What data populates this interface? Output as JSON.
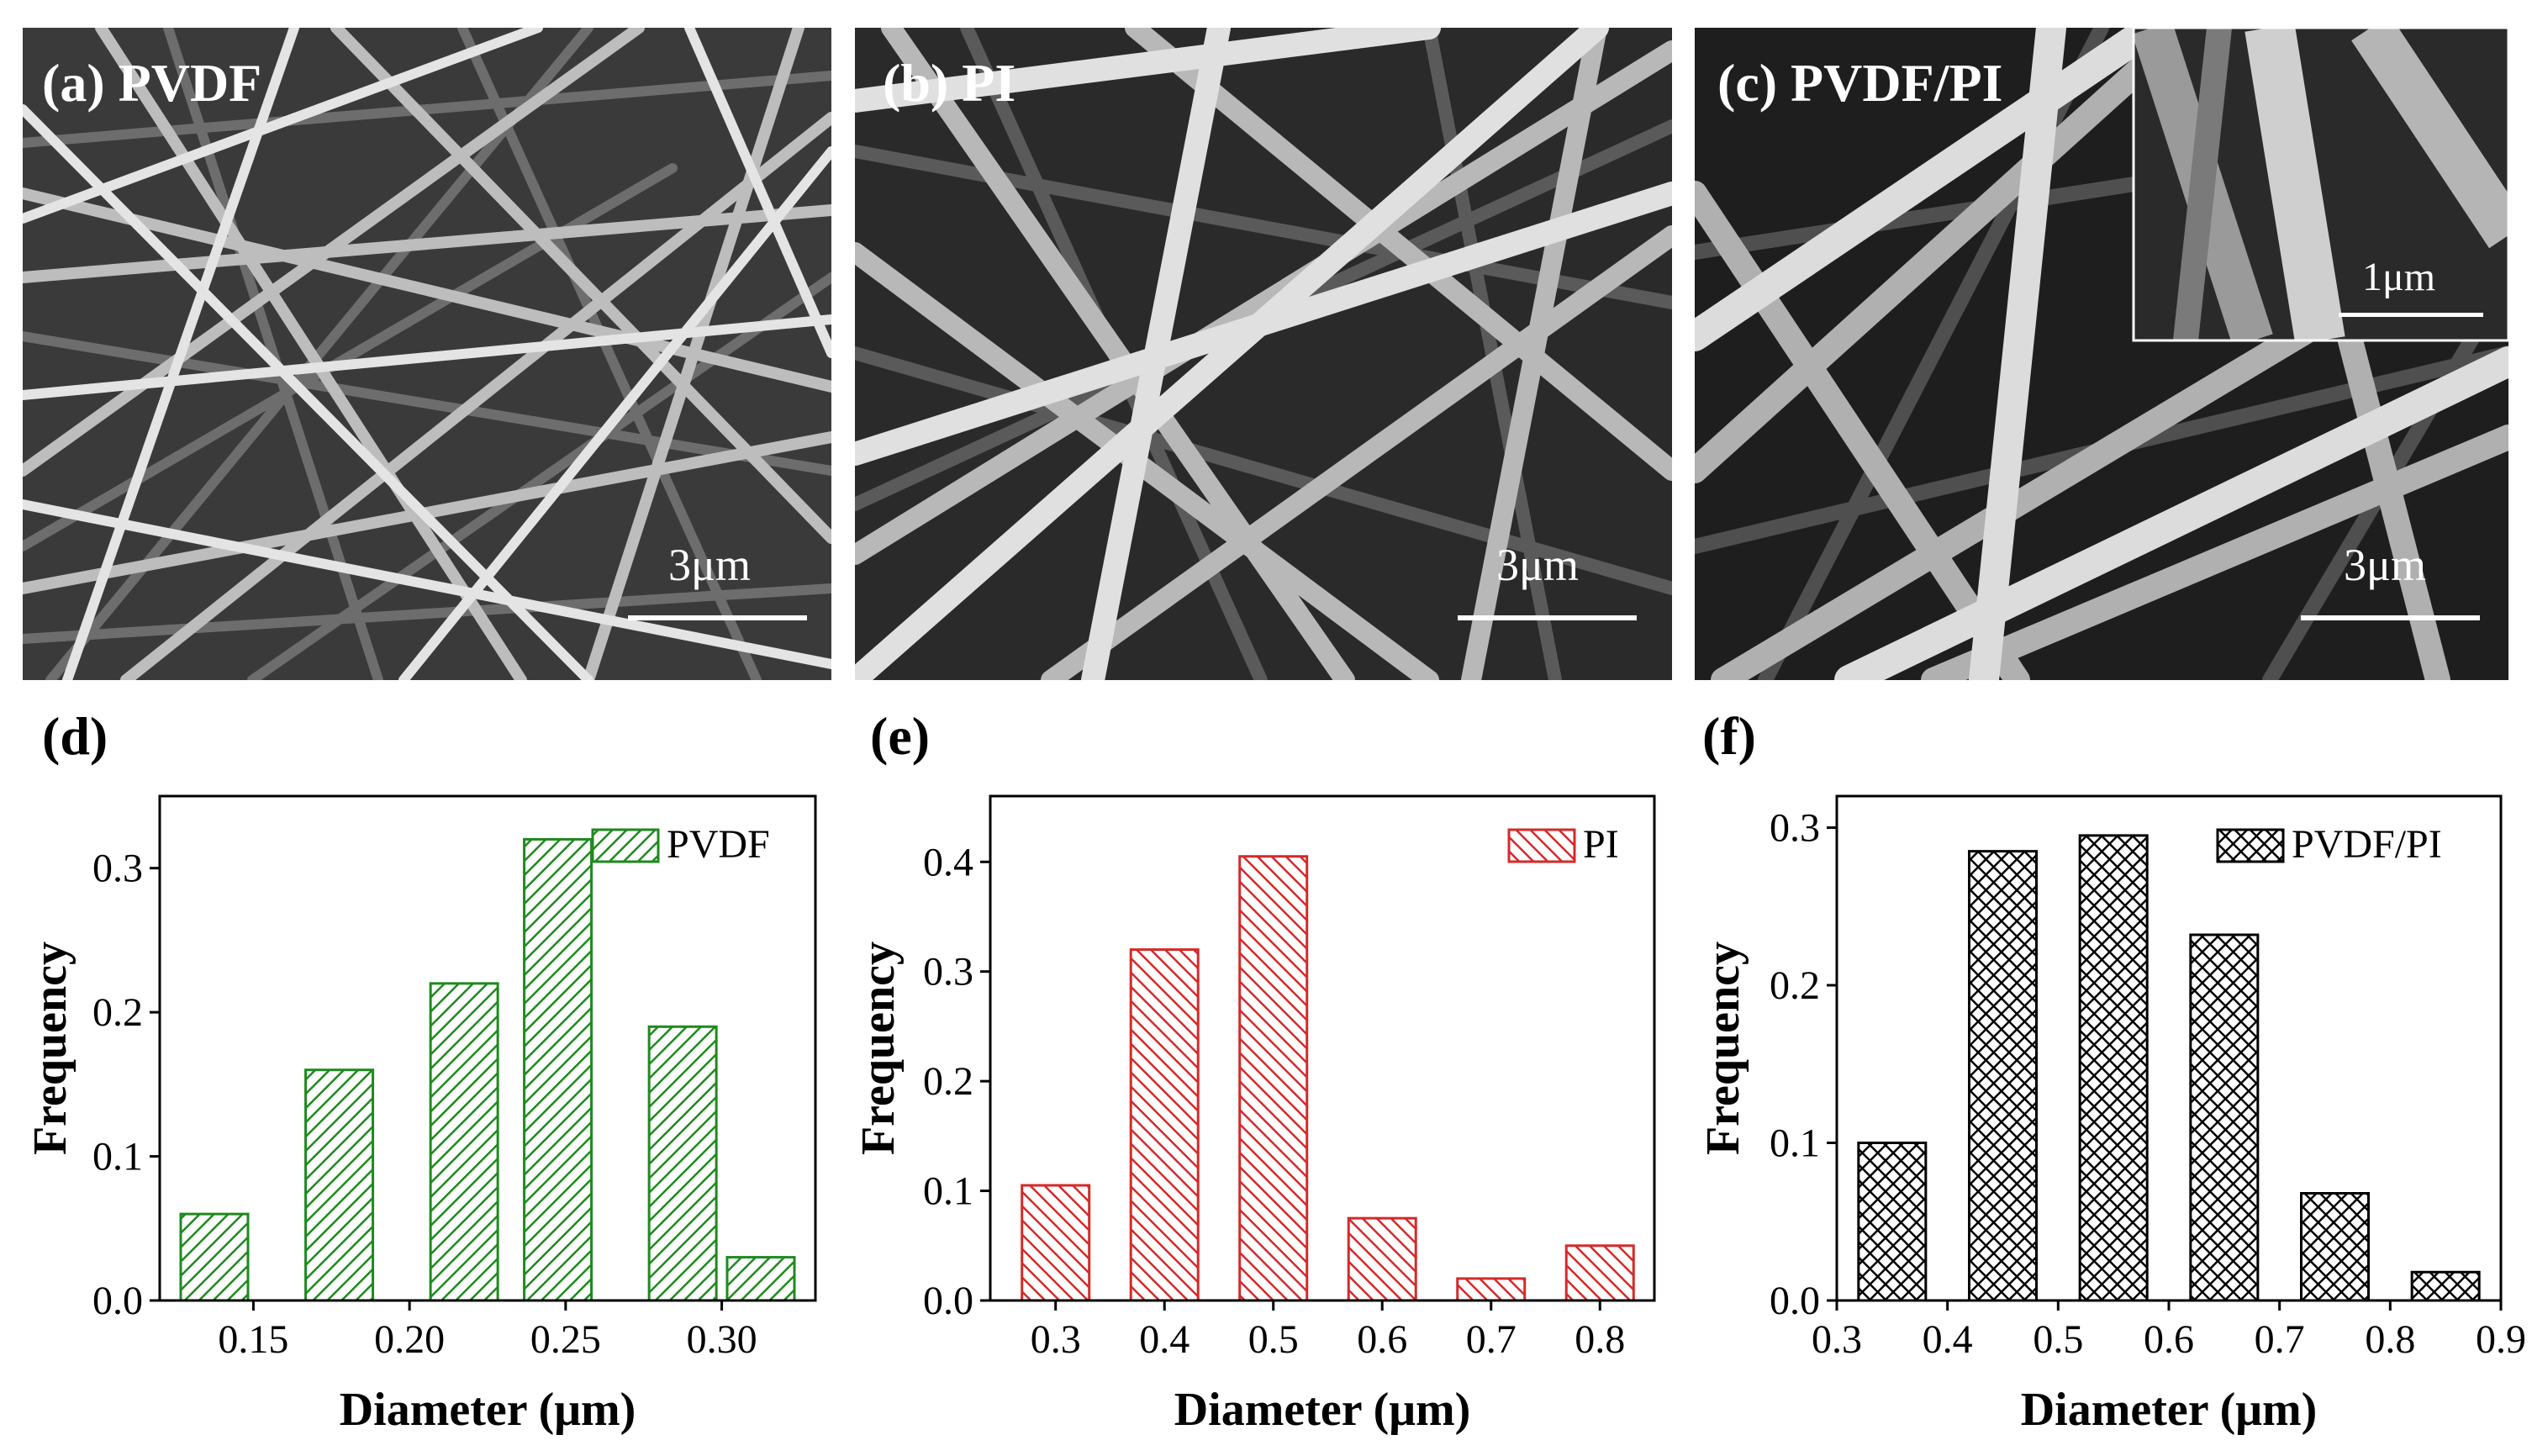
{
  "sem_panels": [
    {
      "label": "(a) PVDF",
      "scale_bar": "3μm"
    },
    {
      "label": "(b) PI",
      "scale_bar": "3μm"
    },
    {
      "label": "(c) PVDF/PI",
      "scale_bar": "3μm",
      "inset_scale_bar": "1μm"
    }
  ],
  "chart_data": [
    {
      "panel": "(d)",
      "type": "bar",
      "series": [
        {
          "name": "PVDF",
          "x": [
            0.1375,
            0.1775,
            0.2175,
            0.2475,
            0.2875,
            0.3125
          ],
          "values": [
            0.06,
            0.16,
            0.22,
            0.32,
            0.19,
            0.03
          ]
        }
      ],
      "xlabel": "Diameter (μm)",
      "ylabel": "Frequency",
      "xticks": [
        "0.15",
        "0.20",
        "0.25",
        "0.30"
      ],
      "yticks": [
        "0.0",
        "0.1",
        "0.2",
        "0.3"
      ],
      "xlim": [
        0.12,
        0.33
      ],
      "ylim": [
        0,
        0.35
      ],
      "color": "#1e8a1e",
      "pattern": "diagonal-hatch",
      "legend_position": "top-right"
    },
    {
      "panel": "(e)",
      "type": "bar",
      "series": [
        {
          "name": "PI",
          "x": [
            0.3,
            0.4,
            0.5,
            0.6,
            0.7,
            0.8
          ],
          "values": [
            0.105,
            0.32,
            0.405,
            0.075,
            0.02,
            0.05
          ]
        }
      ],
      "xlabel": "Diameter (μm)",
      "ylabel": "Frequency",
      "xticks": [
        "0.3",
        "0.4",
        "0.5",
        "0.6",
        "0.7",
        "0.8"
      ],
      "yticks": [
        "0.0",
        "0.1",
        "0.2",
        "0.3",
        "0.4"
      ],
      "xlim": [
        0.24,
        0.85
      ],
      "ylim": [
        0,
        0.46
      ],
      "color": "#d42a2a",
      "pattern": "diagonal-hatch",
      "legend_position": "top-right"
    },
    {
      "panel": "(f)",
      "type": "bar",
      "series": [
        {
          "name": "PVDF/PI",
          "x": [
            0.35,
            0.45,
            0.55,
            0.65,
            0.75,
            0.85
          ],
          "values": [
            0.1,
            0.285,
            0.295,
            0.232,
            0.068,
            0.018
          ]
        }
      ],
      "xlabel": "Diameter (μm)",
      "ylabel": "Frequency",
      "xticks": [
        "0.3",
        "0.4",
        "0.5",
        "0.6",
        "0.7",
        "0.8",
        "0.9"
      ],
      "yticks": [
        "0.0",
        "0.1",
        "0.2",
        "0.3"
      ],
      "xlim": [
        0.3,
        0.9
      ],
      "ylim": [
        0,
        0.32
      ],
      "color": "#000000",
      "pattern": "crosshatch",
      "legend_position": "top-right"
    }
  ]
}
